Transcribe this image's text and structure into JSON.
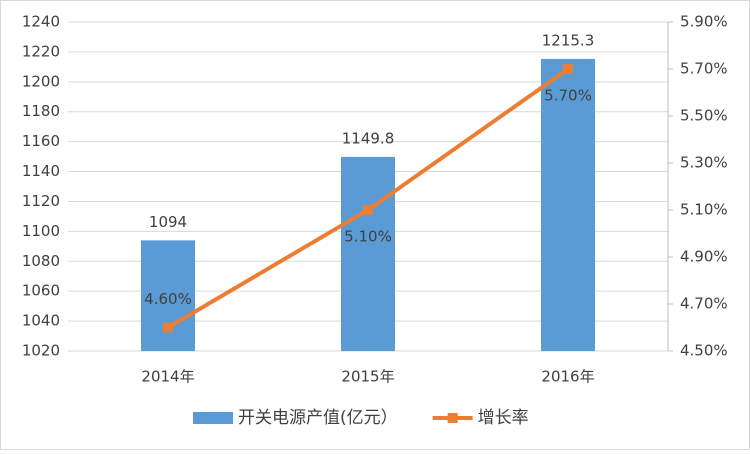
{
  "chart_data": {
    "type": "bar",
    "categories": [
      "2014年",
      "2015年",
      "2016年"
    ],
    "series": [
      {
        "name": "开关电源产值(亿元）",
        "type": "bar",
        "color": "#5b9bd5",
        "values": [
          1094,
          1149.8,
          1215.3
        ]
      },
      {
        "name": "增长率",
        "type": "line",
        "axis": "y2",
        "color": "#ed7d31",
        "values": [
          4.6,
          5.1,
          5.7
        ],
        "value_labels": [
          "4.60%",
          "5.10%",
          "5.70%"
        ]
      }
    ],
    "ylim": [
      1020,
      1240
    ],
    "yticks": [
      1020,
      1040,
      1060,
      1080,
      1100,
      1120,
      1140,
      1160,
      1180,
      1200,
      1220,
      1240
    ],
    "y2lim": [
      4.5,
      5.9
    ],
    "y2ticks": [
      {
        "value": 4.5,
        "label": "4.50%"
      },
      {
        "value": 4.7,
        "label": "4.70%"
      },
      {
        "value": 4.9,
        "label": "4.90%"
      },
      {
        "value": 5.1,
        "label": "5.10%"
      },
      {
        "value": 5.3,
        "label": "5.30%"
      },
      {
        "value": 5.5,
        "label": "5.50%"
      },
      {
        "value": 5.7,
        "label": "5.70%"
      },
      {
        "value": 5.9,
        "label": "5.90%"
      }
    ],
    "grid": true,
    "legend": "bottom"
  }
}
